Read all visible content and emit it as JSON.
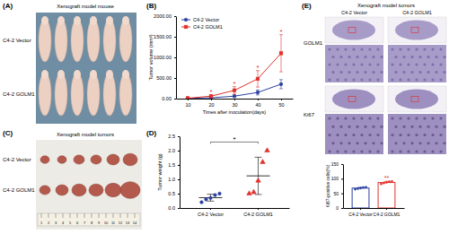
{
  "chart_data": [
    {
      "type": "line",
      "label": "(B)",
      "x_label": "Times after inoculation(days)",
      "y_label": "Tumor volume (mm³)",
      "x": [
        10,
        20,
        30,
        40,
        50
      ],
      "series": [
        {
          "name": "C4-2 Vector",
          "color": "#2b3f9e",
          "marker": "circle",
          "values": [
            5,
            20,
            60,
            150,
            350
          ],
          "errors": [
            3,
            10,
            30,
            60,
            110
          ]
        },
        {
          "name": "C4-2 GOLM1",
          "color": "#e0302b",
          "marker": "square",
          "values": [
            10,
            60,
            200,
            480,
            1100
          ],
          "errors": [
            5,
            30,
            90,
            200,
            450
          ]
        }
      ],
      "annotations": [
        {
          "text": "*",
          "x": 20
        },
        {
          "text": "*",
          "x": 30
        },
        {
          "text": "*",
          "x": 40
        },
        {
          "text": "*",
          "x": 50
        }
      ],
      "xlim": [
        5,
        55
      ],
      "xticks": [
        10,
        20,
        30,
        40,
        50
      ],
      "ylim": [
        0,
        2000
      ],
      "yticks": [
        {
          "value": 0,
          "label": "0.00"
        },
        {
          "value": 500,
          "label": "500.00"
        },
        {
          "value": 1000,
          "label": "1000.00"
        },
        {
          "value": 1500,
          "label": "1500.00"
        },
        {
          "value": 2000,
          "label": "2000.00"
        }
      ],
      "legend": "top-left"
    },
    {
      "type": "strip",
      "label": "(D)",
      "y_label": "Tumor weight (g)",
      "categories": [
        "C4-2 Vector",
        "C4-2 GOLM1"
      ],
      "values": [
        [
          0.2,
          0.3,
          0.35,
          0.45,
          0.5
        ],
        [
          0.5,
          0.55,
          0.95,
          1.6,
          2.0
        ]
      ],
      "means": [
        0.36,
        1.12
      ],
      "sd": [
        0.12,
        0.65
      ],
      "colors": [
        "#2b3f9e",
        "#e0302b"
      ],
      "annotations": [
        {
          "text": "*",
          "y": 2.3
        }
      ],
      "ylim": [
        0,
        2.5
      ],
      "yticks": [
        {
          "value": 0,
          "label": "0.0"
        },
        {
          "value": 0.5,
          "label": "0.5"
        },
        {
          "value": 1,
          "label": "1.0"
        },
        {
          "value": 1.5,
          "label": "1.5"
        },
        {
          "value": 2,
          "label": "2.0"
        },
        {
          "value": 2.5,
          "label": "2.5"
        }
      ]
    },
    {
      "type": "bar",
      "y_label": "Ki67-positive cells(%)",
      "categories": [
        "C4-2 Vector",
        "C4-2 GOLM1"
      ],
      "values": [
        68,
        87
      ],
      "errors": [
        3,
        4
      ],
      "points": [
        [
          64,
          66,
          68,
          70,
          71
        ],
        [
          82,
          85,
          88,
          90,
          91
        ]
      ],
      "colors": [
        "#2b3f9e",
        "#e0302b"
      ],
      "annotations": [
        {
          "text": "**",
          "category": "C4-2 GOLM1"
        }
      ],
      "ylim": [
        0,
        150
      ],
      "yticks": [
        0,
        50,
        100,
        150
      ]
    }
  ],
  "panels": {
    "A": {
      "label": "(A)",
      "title": "Xenograft model mouse",
      "row_labels": [
        "C4-2 Vector",
        "C4-2 GOLM1"
      ]
    },
    "C": {
      "label": "(C)",
      "title": "Xenograft model tumors",
      "row_labels": [
        "C4-2 Vector",
        "C4-2 GOLM1"
      ],
      "ruler": [
        1,
        2,
        3,
        4,
        5,
        6,
        7,
        8,
        9,
        10,
        11,
        12,
        13,
        14
      ]
    },
    "E": {
      "label": "(E)",
      "title": "Xenograft model tumors",
      "column_labels": [
        "C4-2 Vector",
        "C4-2 GOLM1"
      ],
      "row_labels": [
        "GOLM1",
        "Ki67"
      ]
    }
  }
}
